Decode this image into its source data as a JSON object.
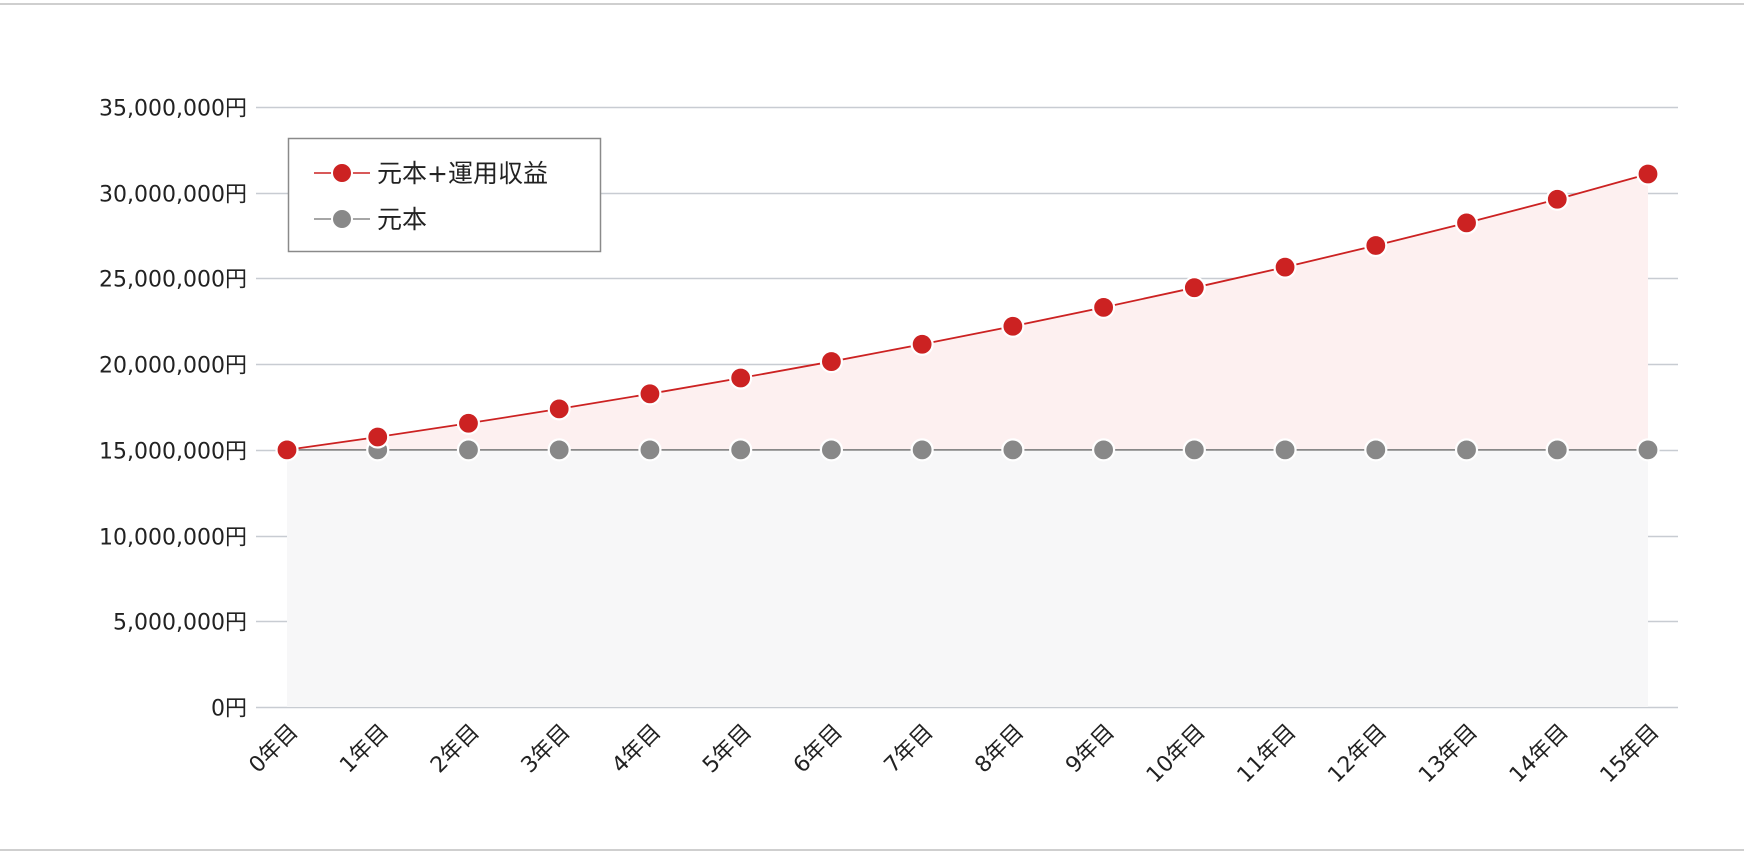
{
  "chart_data": {
    "type": "area",
    "categories": [
      "0年目",
      "1年目",
      "2年目",
      "3年目",
      "4年目",
      "5年目",
      "6年目",
      "7年目",
      "8年目",
      "9年目",
      "10年目",
      "11年目",
      "12年目",
      "13年目",
      "14年目",
      "15年目"
    ],
    "y_tick_labels": [
      "0円",
      "5,000,000円",
      "10,000,000円",
      "15,000,000円",
      "20,000,000円",
      "25,000,000円",
      "30,000,000円",
      "35,000,000円"
    ],
    "y_tick_values": [
      0,
      5000000,
      10000000,
      15000000,
      20000000,
      25000000,
      30000000,
      35000000
    ],
    "ylim": [
      0,
      35000000
    ],
    "grid": true,
    "legend_position": "top-left",
    "series": [
      {
        "name": "元本+運用収益",
        "color": "#cc2222",
        "fill": "#fdf0f0",
        "values": [
          15000000,
          15750000,
          16550000,
          17390000,
          18270000,
          19190000,
          20150000,
          21160000,
          22210000,
          23310000,
          24460000,
          25660000,
          26920000,
          28240000,
          29620000,
          31090000
        ]
      },
      {
        "name": "元本",
        "color": "#888888",
        "fill": "#f7f7f8",
        "values": [
          15000000,
          15000000,
          15000000,
          15000000,
          15000000,
          15000000,
          15000000,
          15000000,
          15000000,
          15000000,
          15000000,
          15000000,
          15000000,
          15000000,
          15000000,
          15000000
        ]
      }
    ]
  }
}
